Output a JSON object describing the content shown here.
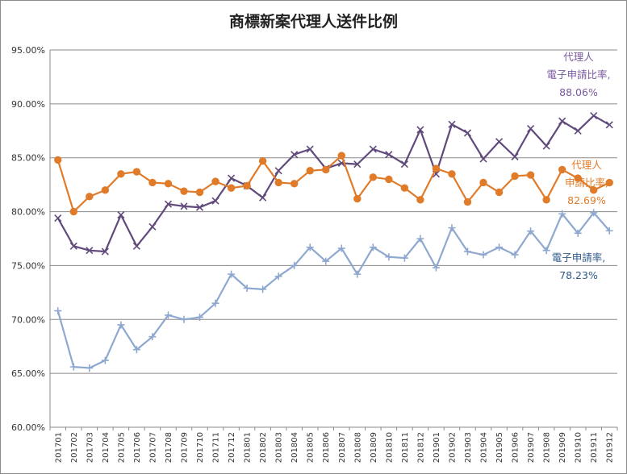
{
  "chart_data": {
    "type": "line",
    "title": "商標新案代理人送件比例",
    "xlabel": "",
    "ylabel": "",
    "ylim": [
      0.6,
      0.95
    ],
    "y_ticks": [
      "60.00%",
      "65.00%",
      "70.00%",
      "75.00%",
      "80.00%",
      "85.00%",
      "90.00%",
      "95.00%"
    ],
    "grid": "horizontal",
    "categories": [
      "201701",
      "201702",
      "201703",
      "201704",
      "201705",
      "201706",
      "201707",
      "201708",
      "201709",
      "201710",
      "201711",
      "201712",
      "201801",
      "201802",
      "201803",
      "201804",
      "201805",
      "201806",
      "201807",
      "201808",
      "201809",
      "201810",
      "201811",
      "201812",
      "201901",
      "201902",
      "201903",
      "201904",
      "201905",
      "201906",
      "201907",
      "201908",
      "201909",
      "201910",
      "201911",
      "201912"
    ],
    "series": [
      {
        "color": "#604a7b",
        "marker": "x",
        "values": [
          0.794,
          0.768,
          0.764,
          0.763,
          0.797,
          0.768,
          0.786,
          0.807,
          0.805,
          0.804,
          0.81,
          0.831,
          0.824,
          0.813,
          0.838,
          0.853,
          0.858,
          0.84,
          0.845,
          0.844,
          0.858,
          0.853,
          0.844,
          0.876,
          0.835,
          0.881,
          0.873,
          0.849,
          0.865,
          0.851,
          0.877,
          0.861,
          0.884,
          0.875,
          0.889,
          0.8806
        ]
      },
      {
        "color": "#e07b2a",
        "marker": "o",
        "values": [
          0.848,
          0.8,
          0.814,
          0.82,
          0.835,
          0.837,
          0.827,
          0.826,
          0.819,
          0.818,
          0.828,
          0.822,
          0.824,
          0.847,
          0.827,
          0.826,
          0.838,
          0.839,
          0.852,
          0.812,
          0.832,
          0.83,
          0.822,
          0.811,
          0.84,
          0.835,
          0.809,
          0.827,
          0.818,
          0.833,
          0.834,
          0.811,
          0.839,
          0.831,
          0.82,
          0.8269
        ]
      },
      {
        "color": "#8fa8cf",
        "marker": "+",
        "values": [
          0.708,
          0.656,
          0.655,
          0.662,
          0.695,
          0.672,
          0.684,
          0.704,
          0.7,
          0.702,
          0.715,
          0.742,
          0.729,
          0.728,
          0.74,
          0.75,
          0.767,
          0.754,
          0.766,
          0.742,
          0.767,
          0.758,
          0.757,
          0.775,
          0.748,
          0.785,
          0.763,
          0.76,
          0.767,
          0.76,
          0.782,
          0.764,
          0.798,
          0.78,
          0.799,
          0.7823
        ]
      }
    ],
    "annotations": [
      {
        "lines": [
          "代理人",
          "電子申請比率,",
          "88.06%"
        ],
        "color": "#7a5a9f"
      },
      {
        "lines": [
          "代理人",
          "申請比率,",
          "82.69%"
        ],
        "color": "#e07b2a"
      },
      {
        "lines": [
          "電子申請率,",
          "78.23%"
        ],
        "color": "#2f5a8a"
      }
    ]
  }
}
